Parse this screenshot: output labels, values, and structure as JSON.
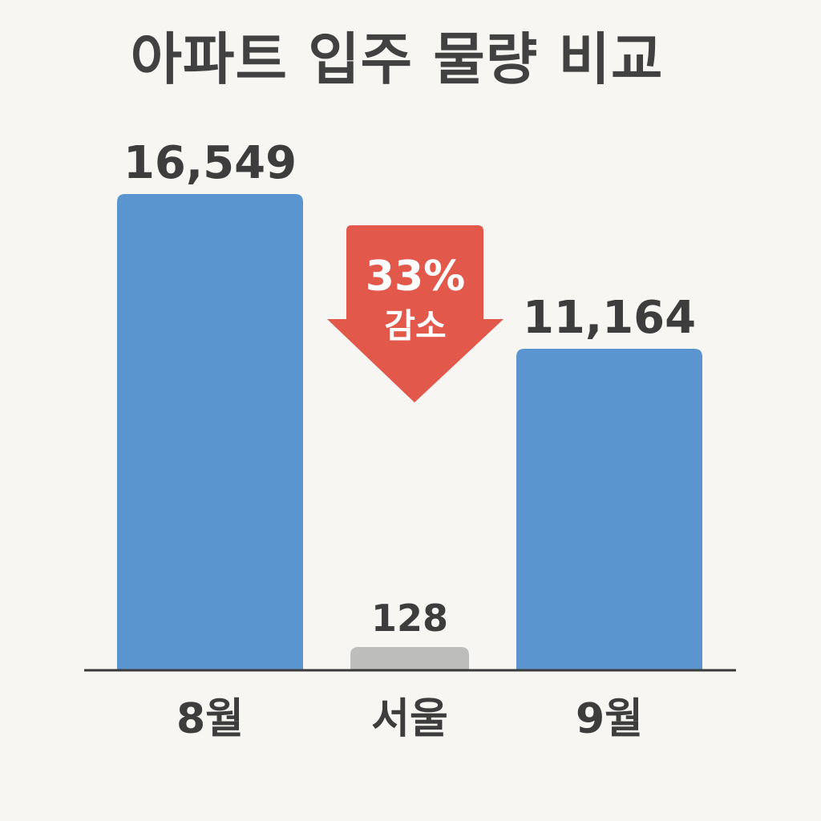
{
  "chart_data": {
    "type": "bar",
    "title": "아파트 입주 물량 비교",
    "categories": [
      "8월",
      "서울",
      "9월"
    ],
    "values": [
      16549,
      128,
      11164
    ],
    "value_labels": [
      "16,549",
      "128",
      "11,164"
    ],
    "bar_colors": [
      "#5b95cf",
      "#bdbdbb",
      "#5b95cf"
    ],
    "ylim": [
      0,
      16549
    ],
    "grid": false,
    "annotation": {
      "percent": "33%",
      "text": "감소",
      "color": "#e2594c"
    }
  }
}
